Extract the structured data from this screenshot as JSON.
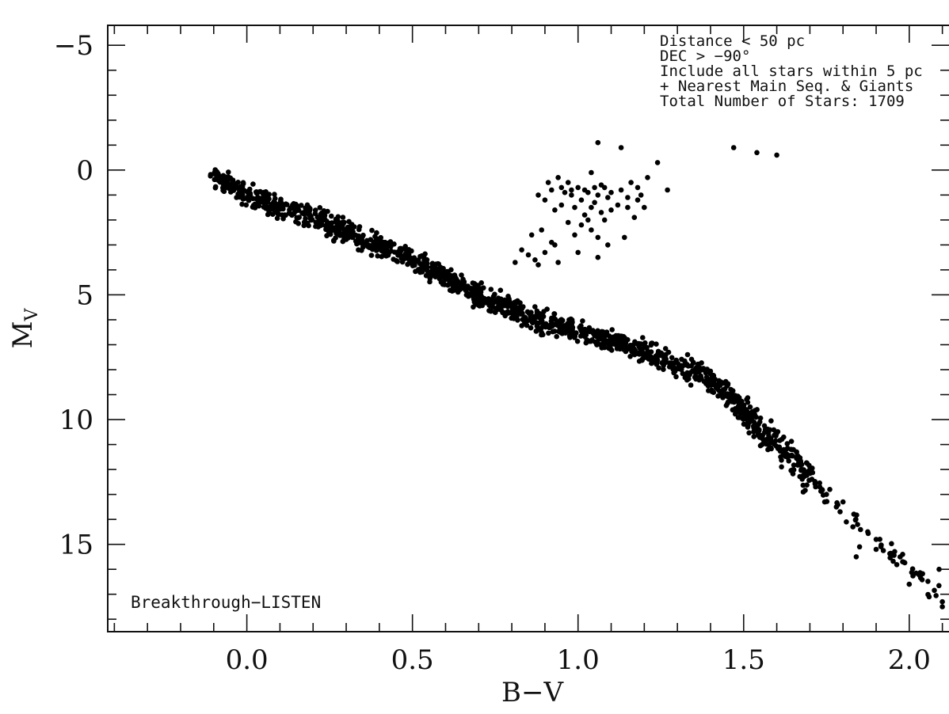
{
  "chart_data": {
    "type": "scatter",
    "title": "",
    "xlabel": "B−V",
    "ylabel": "M",
    "ylabel_subscript": "V",
    "xlim": [
      -0.42,
      2.12
    ],
    "ylim": [
      -5.8,
      18.5
    ],
    "y_inverted": true,
    "x_ticks": [
      {
        "value": 0.0,
        "label": "0.0"
      },
      {
        "value": 0.5,
        "label": "0.5"
      },
      {
        "value": 1.0,
        "label": "1.0"
      },
      {
        "value": 1.5,
        "label": "1.5"
      },
      {
        "value": 2.0,
        "label": "2.0"
      }
    ],
    "y_ticks": [
      {
        "value": -5,
        "label": "−5"
      },
      {
        "value": 0,
        "label": "0"
      },
      {
        "value": 5,
        "label": "5"
      },
      {
        "value": 10,
        "label": "10"
      },
      {
        "value": 15,
        "label": "15"
      }
    ],
    "x_minor_step": 0.1,
    "y_minor_step": 1,
    "grid": false,
    "marker_color": "#000000",
    "annotations": [
      "Distance < 50 pc",
      "DEC > −90°",
      "Include all stars within 5 pc",
      "+ Nearest Main Seq. & Giants",
      "Total Number of Stars: 1709"
    ],
    "corner_label": "Breakthrough−LISTEN",
    "main_sequence": [
      [
        -0.1,
        0.3
      ],
      [
        -0.05,
        0.6
      ],
      [
        0.0,
        1.0
      ],
      [
        0.05,
        1.2
      ],
      [
        0.1,
        1.5
      ],
      [
        0.2,
        1.9
      ],
      [
        0.3,
        2.5
      ],
      [
        0.4,
        3.0
      ],
      [
        0.5,
        3.6
      ],
      [
        0.6,
        4.3
      ],
      [
        0.7,
        5.0
      ],
      [
        0.8,
        5.6
      ],
      [
        0.9,
        6.1
      ],
      [
        1.0,
        6.5
      ],
      [
        1.1,
        6.9
      ],
      [
        1.2,
        7.3
      ],
      [
        1.3,
        7.8
      ],
      [
        1.4,
        8.4
      ],
      [
        1.5,
        9.6
      ],
      [
        1.55,
        10.5
      ],
      [
        1.6,
        11.0
      ],
      [
        1.65,
        11.6
      ],
      [
        1.7,
        12.4
      ],
      [
        1.8,
        13.6
      ],
      [
        1.9,
        14.8
      ],
      [
        2.0,
        16.0
      ],
      [
        2.1,
        17.0
      ]
    ],
    "giants": [
      [
        0.81,
        3.7
      ],
      [
        0.83,
        3.2
      ],
      [
        0.85,
        3.4
      ],
      [
        0.86,
        2.6
      ],
      [
        0.87,
        3.6
      ],
      [
        0.88,
        3.8
      ],
      [
        0.88,
        1.0
      ],
      [
        0.89,
        2.4
      ],
      [
        0.9,
        3.3
      ],
      [
        0.9,
        1.2
      ],
      [
        0.91,
        0.5
      ],
      [
        0.92,
        2.9
      ],
      [
        0.92,
        0.8
      ],
      [
        0.93,
        3.0
      ],
      [
        0.93,
        1.6
      ],
      [
        0.94,
        0.3
      ],
      [
        0.94,
        3.7
      ],
      [
        0.95,
        0.7
      ],
      [
        0.95,
        1.4
      ],
      [
        0.96,
        0.9
      ],
      [
        0.97,
        2.1
      ],
      [
        0.97,
        0.5
      ],
      [
        0.98,
        1.0
      ],
      [
        0.98,
        0.8
      ],
      [
        0.99,
        2.6
      ],
      [
        0.99,
        1.5
      ],
      [
        1.0,
        0.7
      ],
      [
        1.0,
        3.3
      ],
      [
        1.01,
        1.2
      ],
      [
        1.01,
        2.2
      ],
      [
        1.02,
        0.8
      ],
      [
        1.02,
        1.8
      ],
      [
        1.03,
        2.0
      ],
      [
        1.03,
        0.9
      ],
      [
        1.04,
        1.5
      ],
      [
        1.04,
        2.4
      ],
      [
        1.05,
        0.7
      ],
      [
        1.05,
        1.3
      ],
      [
        1.06,
        2.7
      ],
      [
        1.06,
        1.0
      ],
      [
        1.07,
        0.6
      ],
      [
        1.07,
        1.7
      ],
      [
        1.08,
        2.0
      ],
      [
        1.08,
        0.7
      ],
      [
        1.09,
        1.1
      ],
      [
        1.09,
        3.0
      ],
      [
        1.1,
        1.6
      ],
      [
        1.1,
        0.9
      ],
      [
        1.12,
        1.4
      ],
      [
        1.13,
        0.8
      ],
      [
        1.14,
        2.7
      ],
      [
        1.15,
        1.1
      ],
      [
        1.15,
        1.5
      ],
      [
        1.16,
        0.5
      ],
      [
        1.17,
        1.9
      ],
      [
        1.18,
        0.7
      ],
      [
        1.18,
        1.2
      ],
      [
        1.19,
        1.0
      ],
      [
        1.2,
        1.5
      ],
      [
        1.21,
        0.3
      ],
      [
        1.06,
        3.5
      ],
      [
        1.04,
        0.1
      ],
      [
        1.06,
        -1.1
      ],
      [
        1.13,
        -0.9
      ],
      [
        1.24,
        -0.3
      ],
      [
        1.27,
        0.8
      ],
      [
        1.47,
        -0.9
      ],
      [
        1.54,
        -0.7
      ],
      [
        1.6,
        -0.6
      ]
    ]
  }
}
